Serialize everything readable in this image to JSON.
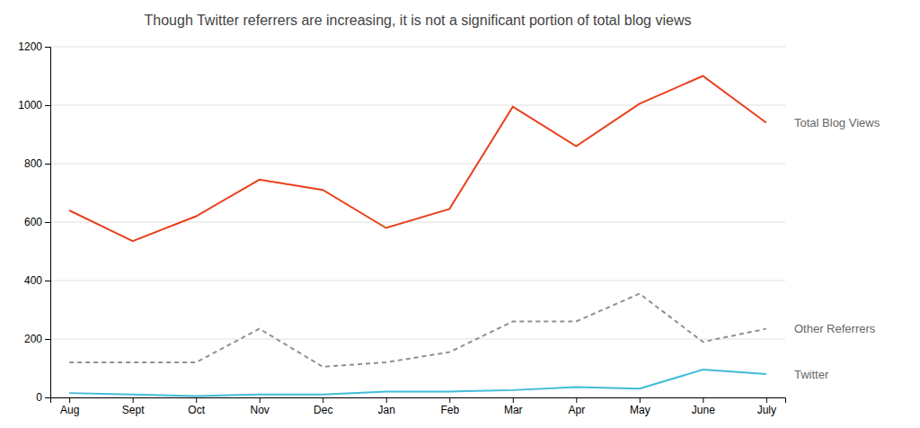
{
  "chart_data": {
    "type": "line",
    "title": "Though Twitter referrers are increasing, it is not a significant portion of total blog views",
    "categories": [
      "Aug",
      "Sept",
      "Oct",
      "Nov",
      "Dec",
      "Jan",
      "Feb",
      "Mar",
      "Apr",
      "May",
      "June",
      "July"
    ],
    "series": [
      {
        "name": "Total Blog Views",
        "color": "#e8401c",
        "line_style": "solid",
        "values": [
          640,
          535,
          620,
          745,
          710,
          580,
          645,
          995,
          860,
          1005,
          1100,
          940
        ]
      },
      {
        "name": "Other Referrers",
        "color": "#909090",
        "line_style": "dashed",
        "values": [
          120,
          120,
          120,
          235,
          105,
          120,
          155,
          260,
          260,
          355,
          190,
          235
        ]
      },
      {
        "name": "Twitter",
        "color": "#40bcd8",
        "line_style": "solid",
        "values": [
          15,
          10,
          5,
          10,
          10,
          20,
          20,
          25,
          35,
          30,
          95,
          80
        ]
      }
    ],
    "ylim": [
      0,
      1200
    ],
    "yticks": [
      0,
      200,
      400,
      600,
      800,
      1000,
      1200
    ],
    "grid": true
  }
}
